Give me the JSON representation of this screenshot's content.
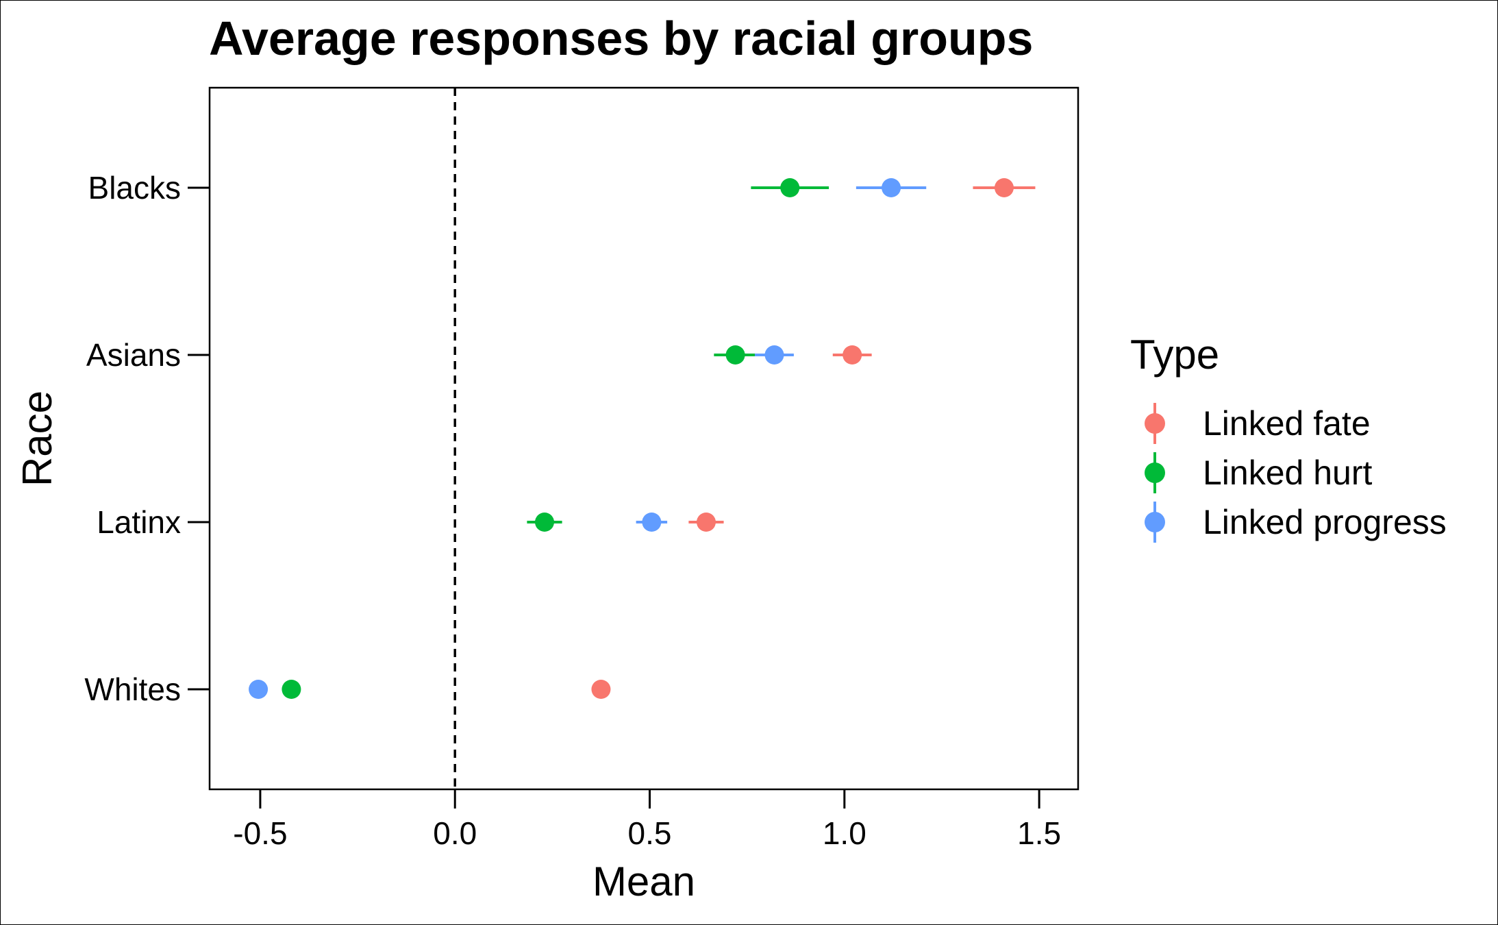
{
  "chart_data": {
    "type": "scatter",
    "title": "Average responses by racial groups",
    "xlabel": "Mean",
    "ylabel": "Race",
    "xlim": [
      -0.63,
      1.6
    ],
    "x_ticks": [
      -0.5,
      0.0,
      0.5,
      1.0,
      1.5
    ],
    "x_tick_labels": [
      "-0.5",
      "0.0",
      "0.5",
      "1.0",
      "1.5"
    ],
    "categories": [
      "Blacks",
      "Asians",
      "Latinx",
      "Whites"
    ],
    "reference_line": {
      "x": 0,
      "style": "dashed"
    },
    "grid": false,
    "legend": {
      "title": "Type",
      "position": "right"
    },
    "series": [
      {
        "name": "Linked fate",
        "color": "#F8766D",
        "points": [
          {
            "category": "Blacks",
            "mean": 1.41,
            "low": 1.33,
            "high": 1.49
          },
          {
            "category": "Asians",
            "mean": 1.02,
            "low": 0.97,
            "high": 1.07
          },
          {
            "category": "Latinx",
            "mean": 0.645,
            "low": 0.6,
            "high": 0.69
          },
          {
            "category": "Whites",
            "mean": 0.375,
            "low": 0.36,
            "high": 0.39
          }
        ]
      },
      {
        "name": "Linked hurt",
        "color": "#00BA38",
        "points": [
          {
            "category": "Blacks",
            "mean": 0.86,
            "low": 0.76,
            "high": 0.96
          },
          {
            "category": "Asians",
            "mean": 0.72,
            "low": 0.665,
            "high": 0.775
          },
          {
            "category": "Latinx",
            "mean": 0.23,
            "low": 0.185,
            "high": 0.275
          },
          {
            "category": "Whites",
            "mean": -0.42,
            "low": -0.435,
            "high": -0.405
          }
        ]
      },
      {
        "name": "Linked progress",
        "color": "#619CFF",
        "points": [
          {
            "category": "Blacks",
            "mean": 1.12,
            "low": 1.03,
            "high": 1.21
          },
          {
            "category": "Asians",
            "mean": 0.82,
            "low": 0.77,
            "high": 0.87
          },
          {
            "category": "Latinx",
            "mean": 0.505,
            "low": 0.465,
            "high": 0.545
          },
          {
            "category": "Whites",
            "mean": -0.505,
            "low": -0.52,
            "high": -0.49
          }
        ]
      }
    ]
  }
}
